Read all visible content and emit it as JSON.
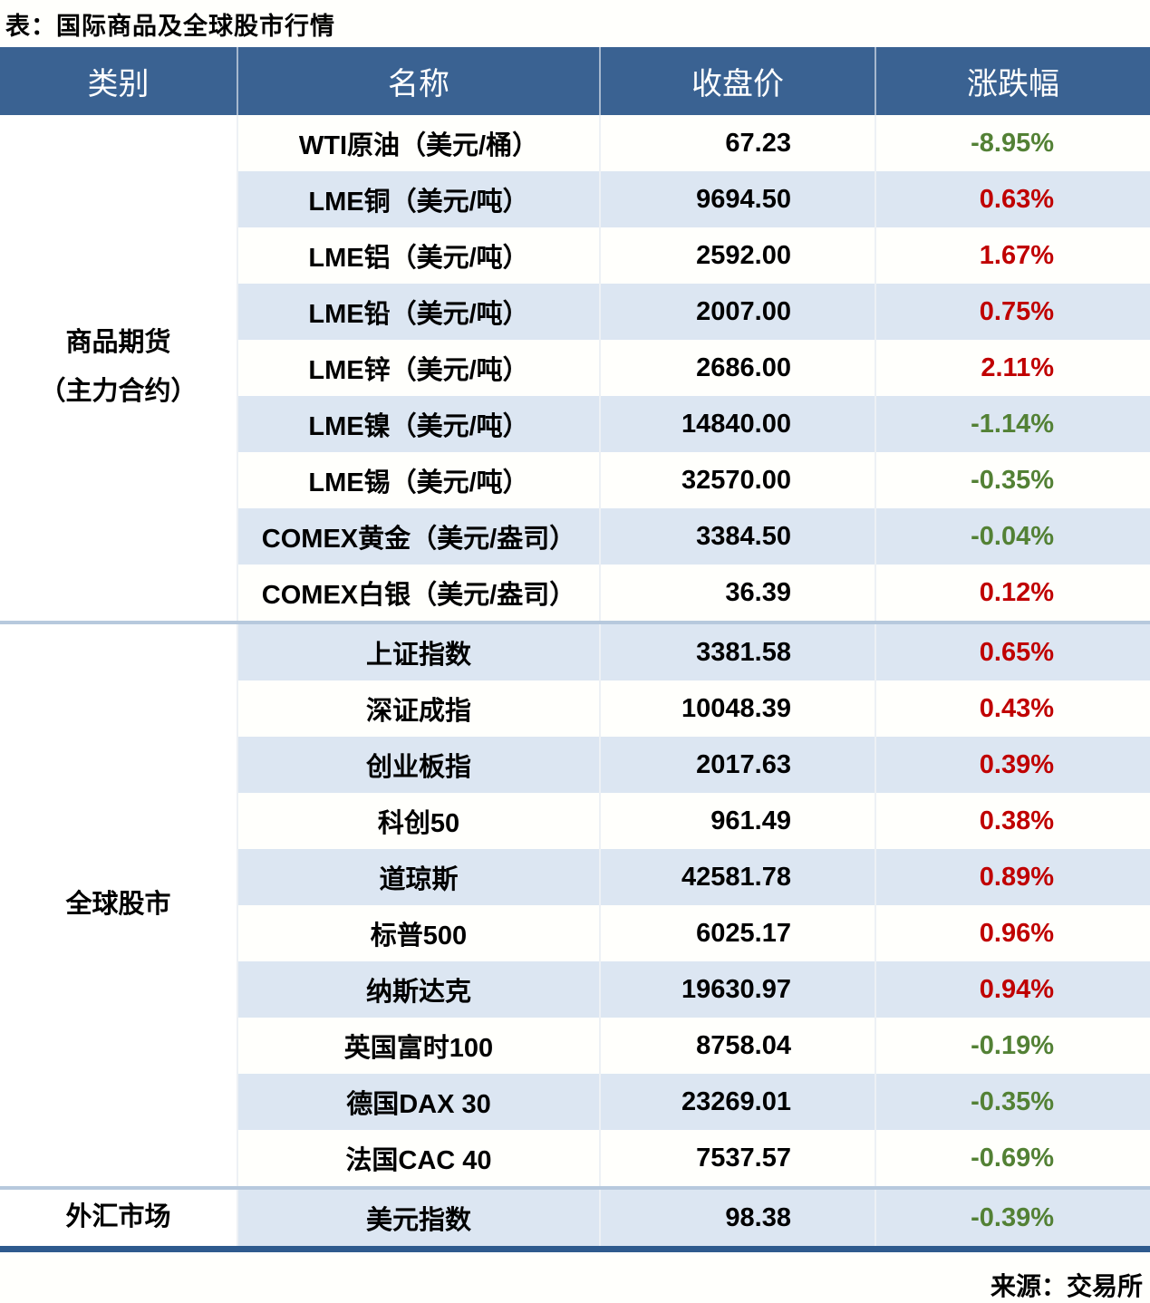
{
  "title": "表：国际商品及全球股市行情",
  "source": "来源：交易所",
  "colors": {
    "header_bg": "#3A6292",
    "row_alt_bg": "#DCE6F2",
    "group_divider": "#B7C9DD",
    "bottom_accent": "#2E5A8E",
    "up_red": "#C00000",
    "down_green": "#538135"
  },
  "table": {
    "headers": [
      "类别",
      "名称",
      "收盘价",
      "涨跌幅"
    ],
    "groups": [
      {
        "label": "商品期货\n（主力合约）",
        "row_count": 9
      },
      {
        "label": "全球股市",
        "row_count": 10
      },
      {
        "label": "外汇市场",
        "row_count": 1
      }
    ],
    "rows": [
      {
        "name": "WTI原油（美元/桶）",
        "close": "67.23",
        "change": "-8.95%",
        "direction": "down"
      },
      {
        "name": "LME铜（美元/吨）",
        "close": "9694.50",
        "change": "0.63%",
        "direction": "up"
      },
      {
        "name": "LME铝（美元/吨）",
        "close": "2592.00",
        "change": "1.67%",
        "direction": "up"
      },
      {
        "name": "LME铅（美元/吨）",
        "close": "2007.00",
        "change": "0.75%",
        "direction": "up"
      },
      {
        "name": "LME锌（美元/吨）",
        "close": "2686.00",
        "change": "2.11%",
        "direction": "up"
      },
      {
        "name": "LME镍（美元/吨）",
        "close": "14840.00",
        "change": "-1.14%",
        "direction": "down"
      },
      {
        "name": "LME锡（美元/吨）",
        "close": "32570.00",
        "change": "-0.35%",
        "direction": "down"
      },
      {
        "name": "COMEX黄金（美元/盎司）",
        "close": "3384.50",
        "change": "-0.04%",
        "direction": "down"
      },
      {
        "name": "COMEX白银（美元/盎司）",
        "close": "36.39",
        "change": "0.12%",
        "direction": "up"
      },
      {
        "name": "上证指数",
        "close": "3381.58",
        "change": "0.65%",
        "direction": "up"
      },
      {
        "name": "深证成指",
        "close": "10048.39",
        "change": "0.43%",
        "direction": "up"
      },
      {
        "name": "创业板指",
        "close": "2017.63",
        "change": "0.39%",
        "direction": "up"
      },
      {
        "name": "科创50",
        "close": "961.49",
        "change": "0.38%",
        "direction": "up"
      },
      {
        "name": "道琼斯",
        "close": "42581.78",
        "change": "0.89%",
        "direction": "up"
      },
      {
        "name": "标普500",
        "close": "6025.17",
        "change": "0.96%",
        "direction": "up"
      },
      {
        "name": "纳斯达克",
        "close": "19630.97",
        "change": "0.94%",
        "direction": "up"
      },
      {
        "name": "英国富时100",
        "close": "8758.04",
        "change": "-0.19%",
        "direction": "down"
      },
      {
        "name": "德国DAX 30",
        "close": "23269.01",
        "change": "-0.35%",
        "direction": "down"
      },
      {
        "name": "法国CAC 40",
        "close": "7537.57",
        "change": "-0.69%",
        "direction": "down"
      },
      {
        "name": "美元指数",
        "close": "98.38",
        "change": "-0.39%",
        "direction": "down"
      }
    ]
  },
  "chart_data": {
    "type": "table",
    "title": "表：国际商品及全球股市行情",
    "columns": [
      "类别",
      "名称",
      "收盘价",
      "涨跌幅"
    ],
    "rows": [
      [
        "商品期货（主力合约）",
        "WTI原油（美元/桶）",
        67.23,
        "-8.95%"
      ],
      [
        "商品期货（主力合约）",
        "LME铜（美元/吨）",
        9694.5,
        "0.63%"
      ],
      [
        "商品期货（主力合约）",
        "LME铝（美元/吨）",
        2592.0,
        "1.67%"
      ],
      [
        "商品期货（主力合约）",
        "LME铅（美元/吨）",
        2007.0,
        "0.75%"
      ],
      [
        "商品期货（主力合约）",
        "LME锌（美元/吨）",
        2686.0,
        "2.11%"
      ],
      [
        "商品期货（主力合约）",
        "LME镍（美元/吨）",
        14840.0,
        "-1.14%"
      ],
      [
        "商品期货（主力合约）",
        "LME锡（美元/吨）",
        32570.0,
        "-0.35%"
      ],
      [
        "商品期货（主力合约）",
        "COMEX黄金（美元/盎司）",
        3384.5,
        "-0.04%"
      ],
      [
        "商品期货（主力合约）",
        "COMEX白银（美元/盎司）",
        36.39,
        "0.12%"
      ],
      [
        "全球股市",
        "上证指数",
        3381.58,
        "0.65%"
      ],
      [
        "全球股市",
        "深证成指",
        10048.39,
        "0.43%"
      ],
      [
        "全球股市",
        "创业板指",
        2017.63,
        "0.39%"
      ],
      [
        "全球股市",
        "科创50",
        961.49,
        "0.38%"
      ],
      [
        "全球股市",
        "道琼斯",
        42581.78,
        "0.89%"
      ],
      [
        "全球股市",
        "标普500",
        6025.17,
        "0.96%"
      ],
      [
        "全球股市",
        "纳斯达克",
        19630.97,
        "0.94%"
      ],
      [
        "全球股市",
        "英国富时100",
        8758.04,
        "-0.19%"
      ],
      [
        "全球股市",
        "德国DAX 30",
        23269.01,
        "-0.35%"
      ],
      [
        "全球股市",
        "法国CAC 40",
        7537.57,
        "-0.69%"
      ],
      [
        "外汇市场",
        "美元指数",
        98.38,
        "-0.39%"
      ]
    ],
    "notes": "红色=上涨, 绿色=下跌; 来源：交易所"
  }
}
